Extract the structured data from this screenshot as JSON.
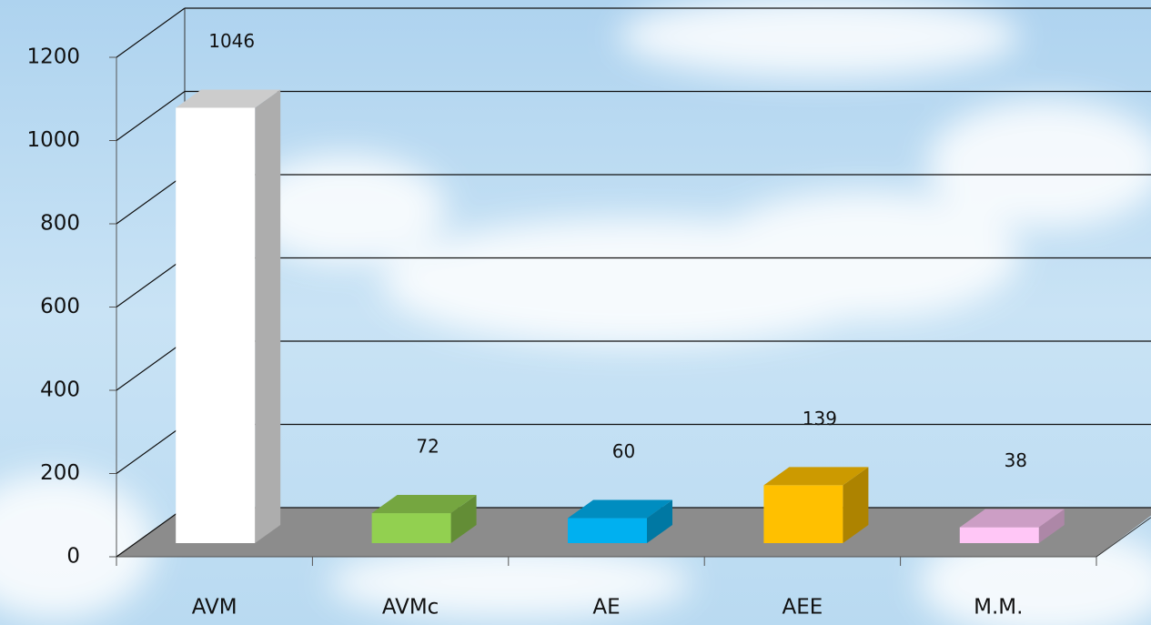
{
  "chart_data": {
    "type": "bar",
    "categories": [
      "AVM",
      "AVMc",
      "AE",
      "AEE",
      "M.M."
    ],
    "values": [
      1046,
      72,
      60,
      139,
      38
    ],
    "colors": [
      "#ffffff",
      "#92d050",
      "#00b0f0",
      "#ffc000",
      "#ffc6f6"
    ],
    "ylim": [
      0,
      1200
    ],
    "yticks": [
      0,
      200,
      400,
      600,
      800,
      1000,
      1200
    ],
    "grid": true
  }
}
